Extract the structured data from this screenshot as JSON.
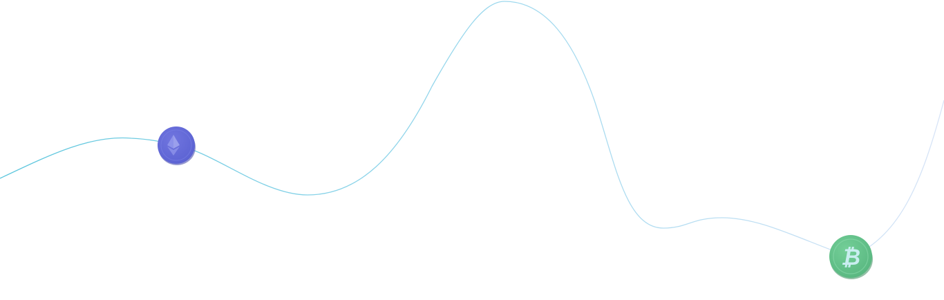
{
  "colors": {
    "background": "#ffffff",
    "line_start": "#5cc6dd",
    "line_mid": "#9fd9ee",
    "line_end": "#d8e4f7",
    "eth_coin": "#5b62d2",
    "eth_symbol": "#8e93ea",
    "btc_coin": "#56b57e",
    "btc_symbol": "#c9eef0"
  },
  "icons": {
    "ethereum": "ethereum-coin-icon",
    "bitcoin": "bitcoin-coin-icon"
  }
}
